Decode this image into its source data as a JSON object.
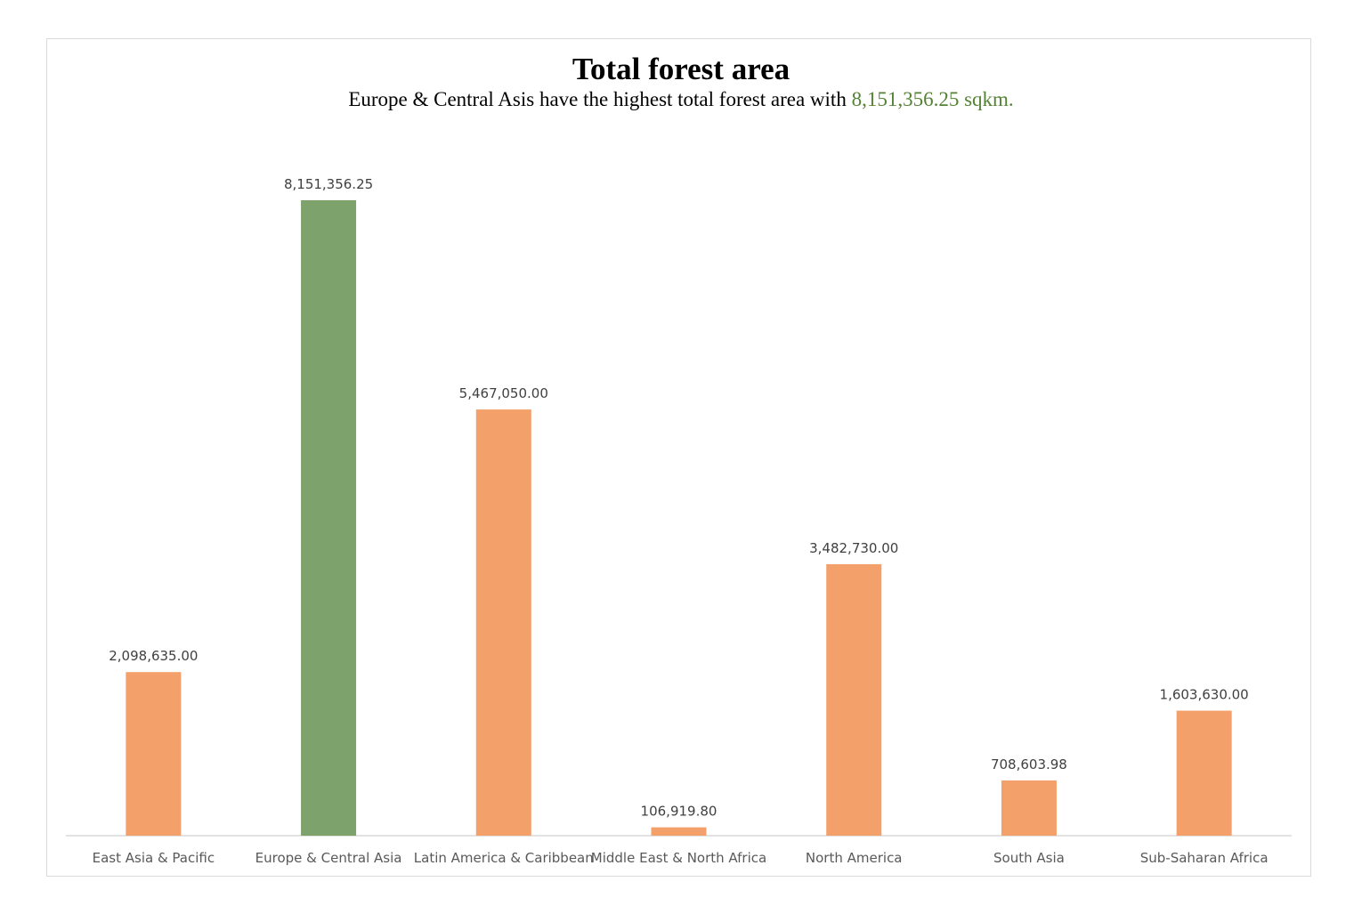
{
  "chart_data": {
    "type": "bar",
    "title": "Total forest area",
    "subtitle_prefix": "Europe & Central Asis have the highest total forest area with ",
    "subtitle_highlight": "8,151,356.25 sqkm.",
    "categories": [
      "East Asia & Pacific",
      "Europe & Central Asia",
      "Latin America & Caribbean",
      "Middle East & North Africa",
      "North America",
      "South Asia",
      "Sub-Saharan Africa"
    ],
    "values": [
      2098635.0,
      8151356.25,
      5467050.0,
      106919.8,
      3482730.0,
      708603.98,
      1603630.0
    ],
    "data_labels": [
      "2,098,635.00",
      "8,151,356.25",
      "5,467,050.00",
      "106,919.80",
      "3,482,730.00",
      "708,603.98",
      "1,603,630.00"
    ],
    "bar_colors": [
      "#f4a06a",
      "#7ea26c",
      "#f4a06a",
      "#f4a06a",
      "#f4a06a",
      "#f4a06a",
      "#f4a06a"
    ],
    "highlight_color": "#548235",
    "xlabel": "",
    "ylabel": "",
    "ylim": [
      0,
      8151356.25
    ],
    "grid": false,
    "legend": "none"
  }
}
